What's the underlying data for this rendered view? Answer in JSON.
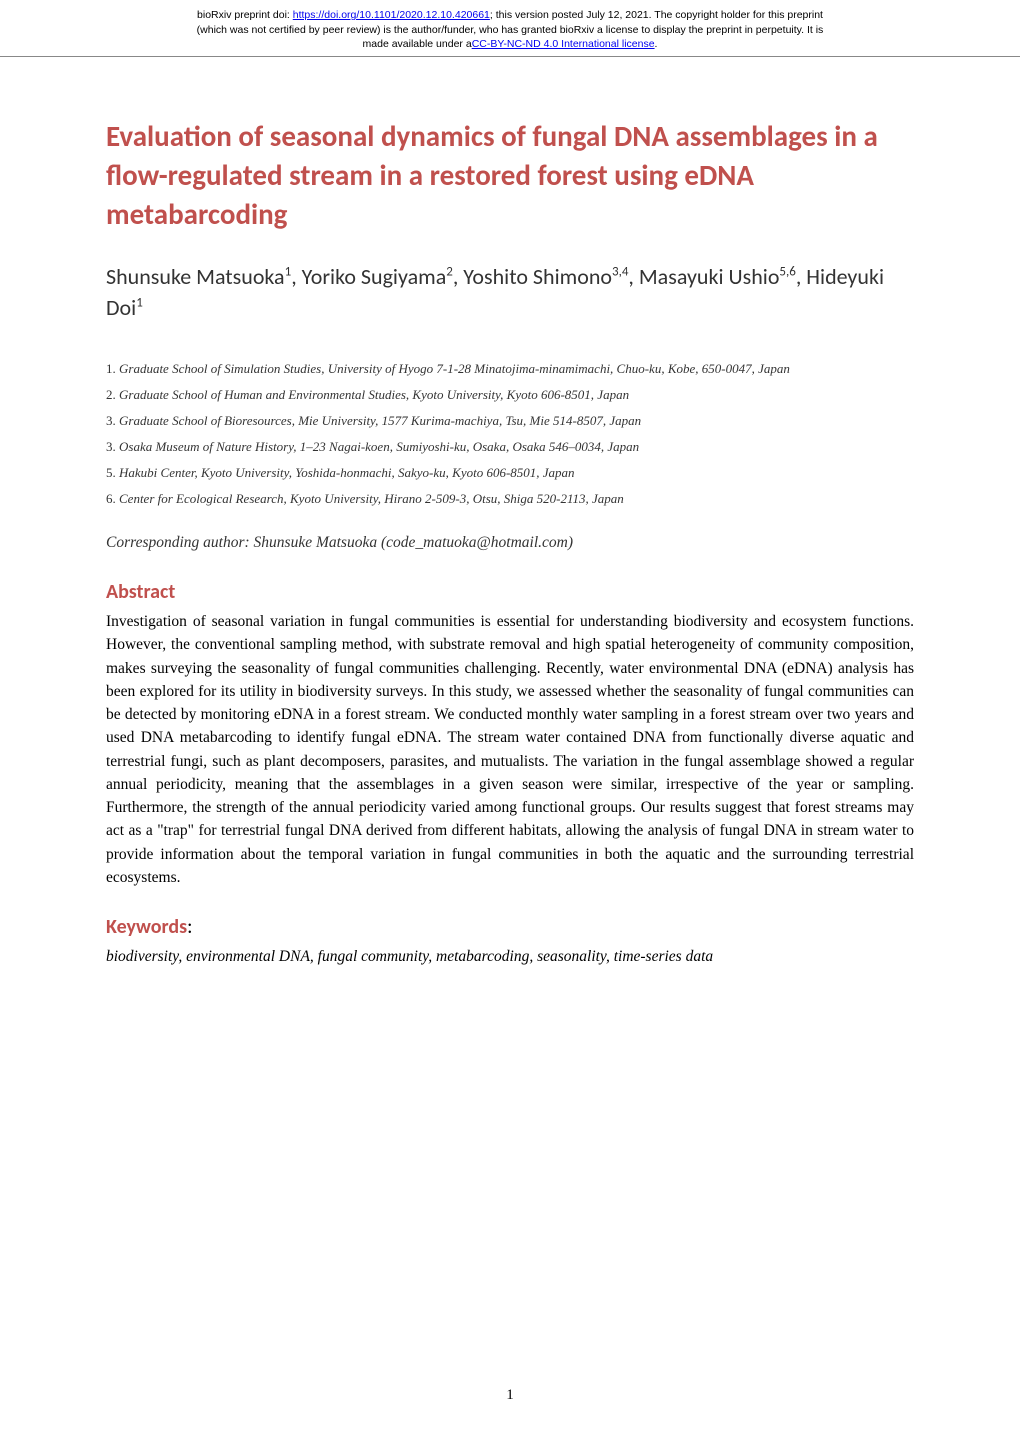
{
  "header": {
    "line1_prefix": "bioRxiv preprint doi: ",
    "doi_link": "https://doi.org/10.1101/2020.12.10.420661",
    "line1_suffix": "; this version posted July 12, 2021. The copyright holder for this preprint",
    "line2": "(which was not certified by peer review) is the author/funder, who has granted bioRxiv a license to display the preprint in perpetuity. It is",
    "line3_prefix": "made available under a",
    "license_link": "CC-BY-NC-ND 4.0 International license",
    "line3_suffix": "."
  },
  "title": "Evaluation of seasonal dynamics of fungal DNA assemblages in a flow-regulated stream in a restored forest using eDNA metabarcoding",
  "authors_html": "Shunsuke Matsuoka<sup>1</sup>, Yoriko Sugiyama<sup>2</sup>, Yoshito Shimono<sup>3,4</sup>, Masayuki Ushio<sup>5,6</sup>, Hideyuki Doi<sup>1</sup>",
  "affiliations": [
    {
      "num": "1.",
      "text": "Graduate School of Simulation Studies, University of Hyogo 7-1-28 Minatojima-minamimachi, Chuo-ku, Kobe, 650-0047, Japan"
    },
    {
      "num": "2.",
      "text": "Graduate School of Human and Environmental Studies, Kyoto University, Kyoto 606-8501, Japan"
    },
    {
      "num": "3.",
      "text": "Graduate School of Bioresources, Mie University, 1577 Kurima-machiya, Tsu, Mie 514-8507, Japan"
    },
    {
      "num": "3.",
      "text": "Osaka Museum of Nature History, 1–23 Nagai-koen, Sumiyoshi-ku, Osaka, Osaka 546–0034, Japan"
    },
    {
      "num": "5.",
      "text": "Hakubi Center, Kyoto University, Yoshida-honmachi, Sakyo-ku, Kyoto 606-8501, Japan"
    },
    {
      "num": "6.",
      "text": "Center for Ecological Research, Kyoto University, Hirano 2-509-3, Otsu, Shiga 520-2113, Japan"
    }
  ],
  "corresponding": "Corresponding author: Shunsuke Matsuoka (code_matuoka@hotmail.com)",
  "abstract_heading": "Abstract",
  "abstract_text": "Investigation of seasonal variation in fungal communities is essential for understanding biodiversity and ecosystem functions. However, the conventional sampling method, with substrate removal and high spatial heterogeneity of community composition, makes surveying the seasonality of fungal communities challenging. Recently, water environmental DNA (eDNA) analysis has been explored for its utility in biodiversity surveys. In this study, we assessed whether the seasonality of fungal communities can be detected by monitoring eDNA in a forest stream. We conducted monthly water sampling in a forest stream over two years and used DNA metabarcoding to identify fungal eDNA. The stream water contained DNA from functionally diverse aquatic and terrestrial fungi, such as plant decomposers, parasites, and mutualists. The variation in the fungal assemblage showed a regular annual periodicity, meaning that the assemblages in a given season were similar, irrespective of the year or sampling. Furthermore, the strength of the annual periodicity varied among functional groups. Our results suggest that forest streams may act as a \"trap\" for terrestrial fungal DNA derived from different habitats, allowing the analysis of fungal DNA in stream water to provide information about the temporal variation in fungal communities in both the aquatic and the surrounding terrestrial ecosystems.",
  "keywords_heading": "Keywords",
  "keywords_text": "biodiversity, environmental DNA, fungal community, metabarcoding, seasonality, time-series data",
  "page_number": "1",
  "colors": {
    "heading_color": "#c0504d",
    "link_color": "#0000ee",
    "text_color": "#000000",
    "background": "#ffffff"
  }
}
